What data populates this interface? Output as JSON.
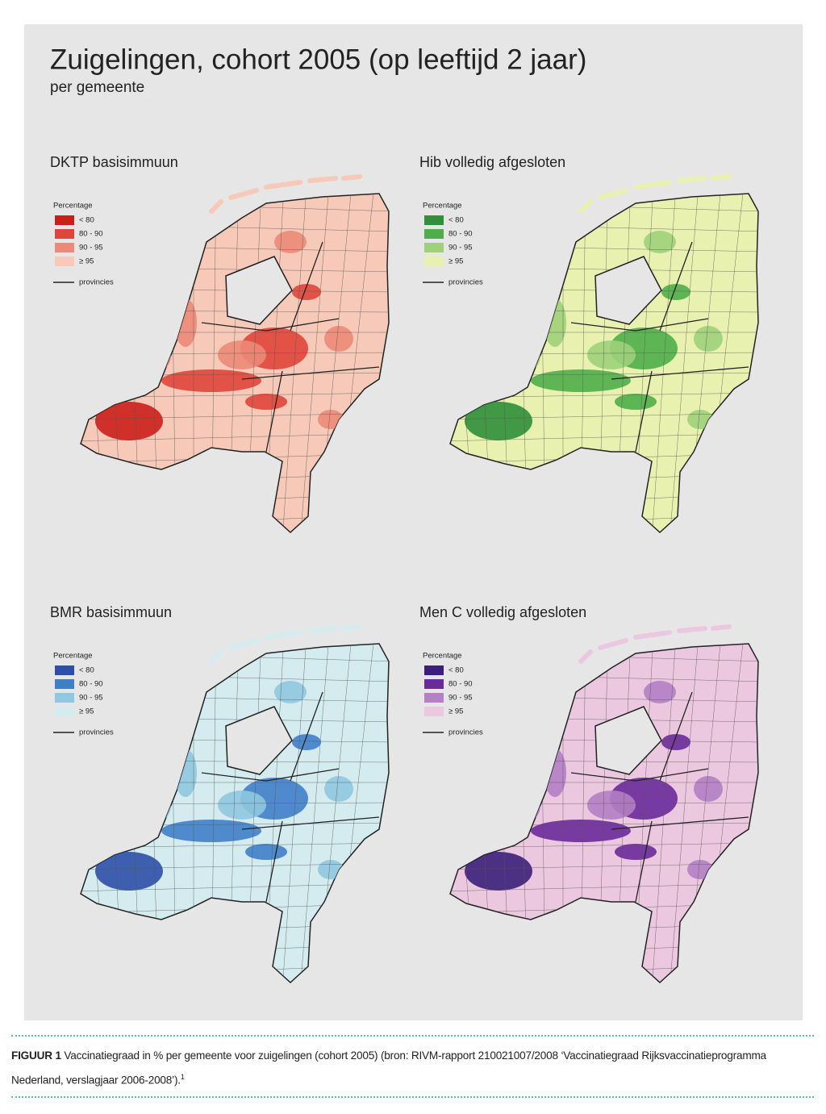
{
  "header": {
    "title": "Zuigelingen, cohort 2005 (op leeftijd 2 jaar)",
    "subtitle": "per gemeente"
  },
  "panels": [
    {
      "title": "DKTP basisimmuun",
      "legend_title": "Percentage",
      "legend": [
        {
          "label": "< 80",
          "color": "#cc1f1a"
        },
        {
          "label": "80 - 90",
          "color": "#e0453a"
        },
        {
          "label": "90 - 95",
          "color": "#ec8a78"
        },
        {
          "label": "≥ 95",
          "color": "#f6c9b8"
        }
      ],
      "provinces_label": "provincies"
    },
    {
      "title": "Hib volledig afgesloten",
      "legend_title": "Percentage",
      "legend": [
        {
          "label": "< 80",
          "color": "#2f8f3a"
        },
        {
          "label": "80 - 90",
          "color": "#4fae4a"
        },
        {
          "label": "90 - 95",
          "color": "#9fd07a"
        },
        {
          "label": "≥ 95",
          "color": "#e9f1b0"
        }
      ],
      "provinces_label": "provincies"
    },
    {
      "title": "BMR basisimmuun",
      "legend_title": "Percentage",
      "legend": [
        {
          "label": "< 80",
          "color": "#2e4fa8"
        },
        {
          "label": "80 - 90",
          "color": "#3f7fc8"
        },
        {
          "label": "90 - 95",
          "color": "#90c8e0"
        },
        {
          "label": "≥ 95",
          "color": "#d4ecef"
        }
      ],
      "provinces_label": "provincies"
    },
    {
      "title": "Men C volledig afgesloten",
      "legend_title": "Percentage",
      "legend": [
        {
          "label": "< 80",
          "color": "#3b1f7a"
        },
        {
          "label": "80 - 90",
          "color": "#6a2a9a"
        },
        {
          "label": "90 - 95",
          "color": "#b47fc4"
        },
        {
          "label": "≥ 95",
          "color": "#ecc8e0"
        }
      ],
      "provinces_label": "provincies"
    }
  ],
  "caption": {
    "label": "FIGUUR 1",
    "text": "Vaccinatiegraad in % per gemeente voor zuigelingen (cohort 2005) (bron: RIVM-rapport 210021007/2008 ‘Vaccinatiegraad Rijksvaccinatieprogramma Nederland, verslagjaar 2006-2008’).",
    "note": "1"
  }
}
